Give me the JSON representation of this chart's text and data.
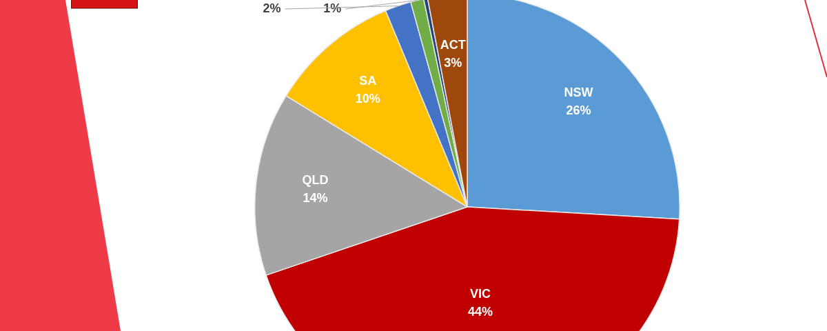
{
  "chart_data": {
    "type": "pie",
    "categories": [
      "NSW",
      "VIC",
      "QLD",
      "SA",
      null,
      null,
      null,
      "ACT"
    ],
    "values": [
      26,
      44,
      14,
      10,
      2,
      1,
      0.3,
      3
    ],
    "value_labels": [
      "26%",
      "44%",
      "14%",
      "10%",
      "2%",
      "1%",
      null,
      "3%"
    ],
    "colors": [
      "#5b9bd5",
      "#c00000",
      "#a5a5a5",
      "#ffc000",
      "#4472c4",
      "#70ad47",
      "#264478",
      "#9e480e"
    ],
    "legend": false
  }
}
